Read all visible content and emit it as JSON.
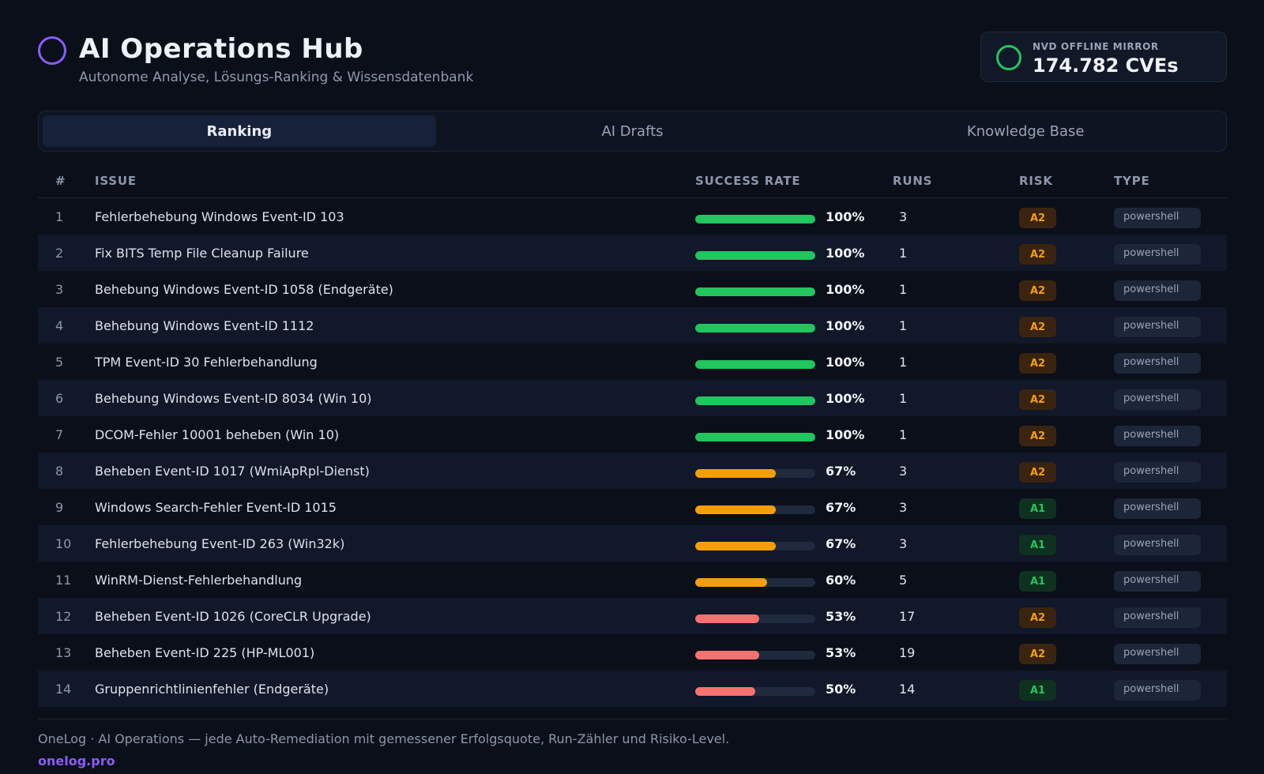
{
  "header": {
    "title": "AI Operations Hub",
    "subtitle": "Autonome Analyse, Lösungs-Ranking & Wissensdatenbank",
    "nvd_label": "NVD OFFLINE MIRROR",
    "nvd_value": "174.782 CVEs"
  },
  "tabs": [
    {
      "label": "Ranking",
      "active": true
    },
    {
      "label": "AI Drafts",
      "active": false
    },
    {
      "label": "Knowledge Base",
      "active": false
    }
  ],
  "columns": {
    "num": "#",
    "issue": "ISSUE",
    "rate": "SUCCESS RATE",
    "runs": "RUNS",
    "risk": "RISK",
    "type": "TYPE"
  },
  "colors": {
    "high": "#22c55e",
    "medium": "#f59e0b",
    "low": "#f87171",
    "accent": "#8b5cf6"
  },
  "rows": [
    {
      "num": "1",
      "issue": "Fehlerbehebung Windows Event-ID 103",
      "rate": 100,
      "rate_label": "100%",
      "runs": "3",
      "risk": "A2",
      "type": "powershell"
    },
    {
      "num": "2",
      "issue": "Fix BITS Temp File Cleanup Failure",
      "rate": 100,
      "rate_label": "100%",
      "runs": "1",
      "risk": "A2",
      "type": "powershell"
    },
    {
      "num": "3",
      "issue": "Behebung Windows Event-ID 1058 (Endgeräte)",
      "rate": 100,
      "rate_label": "100%",
      "runs": "1",
      "risk": "A2",
      "type": "powershell"
    },
    {
      "num": "4",
      "issue": "Behebung Windows Event-ID 1112",
      "rate": 100,
      "rate_label": "100%",
      "runs": "1",
      "risk": "A2",
      "type": "powershell"
    },
    {
      "num": "5",
      "issue": "TPM Event-ID 30 Fehlerbehandlung",
      "rate": 100,
      "rate_label": "100%",
      "runs": "1",
      "risk": "A2",
      "type": "powershell"
    },
    {
      "num": "6",
      "issue": "Behebung Windows Event-ID 8034 (Win 10)",
      "rate": 100,
      "rate_label": "100%",
      "runs": "1",
      "risk": "A2",
      "type": "powershell"
    },
    {
      "num": "7",
      "issue": "DCOM-Fehler 10001 beheben (Win 10)",
      "rate": 100,
      "rate_label": "100%",
      "runs": "1",
      "risk": "A2",
      "type": "powershell"
    },
    {
      "num": "8",
      "issue": "Beheben Event-ID 1017 (WmiApRpl-Dienst)",
      "rate": 67,
      "rate_label": "67%",
      "runs": "3",
      "risk": "A2",
      "type": "powershell"
    },
    {
      "num": "9",
      "issue": "Windows Search-Fehler Event-ID 1015",
      "rate": 67,
      "rate_label": "67%",
      "runs": "3",
      "risk": "A1",
      "type": "powershell"
    },
    {
      "num": "10",
      "issue": "Fehlerbehebung Event-ID 263 (Win32k)",
      "rate": 67,
      "rate_label": "67%",
      "runs": "3",
      "risk": "A1",
      "type": "powershell"
    },
    {
      "num": "11",
      "issue": "WinRM-Dienst-Fehlerbehandlung",
      "rate": 60,
      "rate_label": "60%",
      "runs": "5",
      "risk": "A1",
      "type": "powershell"
    },
    {
      "num": "12",
      "issue": "Beheben Event-ID 1026 (CoreCLR Upgrade)",
      "rate": 53,
      "rate_label": "53%",
      "runs": "17",
      "risk": "A2",
      "type": "powershell"
    },
    {
      "num": "13",
      "issue": "Beheben Event-ID 225 (HP-ML001)",
      "rate": 53,
      "rate_label": "53%",
      "runs": "19",
      "risk": "A2",
      "type": "powershell"
    },
    {
      "num": "14",
      "issue": "Gruppenrichtlinienfehler (Endgeräte)",
      "rate": 50,
      "rate_label": "50%",
      "runs": "14",
      "risk": "A1",
      "type": "powershell"
    }
  ],
  "footer": {
    "text": "OneLog · AI Operations — jede Auto-Remediation mit gemessener Erfolgsquote, Run-Zähler und Risiko-Level.",
    "link": "onelog.pro"
  }
}
